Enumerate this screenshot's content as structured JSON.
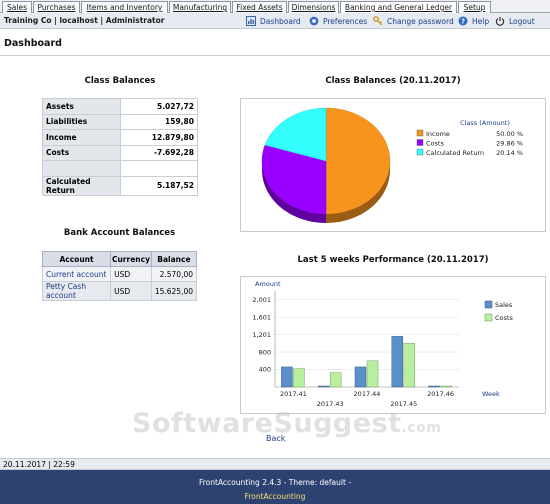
{
  "tabs": [
    {
      "label": "Sales"
    },
    {
      "label": "Purchases"
    },
    {
      "label": "Items and Inventory"
    },
    {
      "label": "Manufacturing"
    },
    {
      "label": "Fixed Assets"
    },
    {
      "label": "Dimensions"
    },
    {
      "label": "Banking and General Ledger"
    },
    {
      "label": "Setup"
    }
  ],
  "active_tab": "Banking and General Ledger",
  "header": {
    "company": "Training Co | localhost | Administrator",
    "links": {
      "dashboard": "Dashboard",
      "preferences": "Preferences",
      "change_password": "Change password",
      "help": "Help",
      "logout": "Logout"
    }
  },
  "page": {
    "title": "Dashboard"
  },
  "class_balances": {
    "title": "Class Balances",
    "rows": [
      {
        "label": "Assets",
        "value": "5.027,72"
      },
      {
        "label": "Liabilities",
        "value": "159,80"
      },
      {
        "label": "Income",
        "value": "12.879,80"
      },
      {
        "label": "Costs",
        "value": "-7.692,28"
      },
      {
        "label": "",
        "value": ""
      },
      {
        "label": "Calculated Return",
        "value": "5.187,52"
      }
    ]
  },
  "bank_balances": {
    "title": "Bank Account Balances",
    "headers": {
      "account": "Account",
      "currency": "Currency",
      "balance": "Balance"
    },
    "rows": [
      {
        "account": "Current account",
        "currency": "USD",
        "balance": "2.570,00"
      },
      {
        "account": "Petty Cash account",
        "currency": "USD",
        "balance": "15.625,00"
      }
    ]
  },
  "pie_title": "Class Balances (20.11.2017)",
  "bar_title": "Last 5 weeks Performance (20.11.2017)",
  "chart_data": [
    {
      "type": "pie",
      "title": "Class Balances (20.11.2017)",
      "legend_title": "Class (Amount)",
      "legend_position": "right",
      "slices": [
        {
          "label": "Income",
          "percent_label": "50.00 %",
          "value": 50.0,
          "color": "#f7941d"
        },
        {
          "label": "Costs",
          "percent_label": "29.86 %",
          "value": 29.86,
          "color": "#9900ff"
        },
        {
          "label": "Calculated Return",
          "percent_label": "20.14 %",
          "value": 20.14,
          "color": "#33ffff"
        }
      ]
    },
    {
      "type": "bar",
      "title": "Last 5 weeks Performance (20.11.2017)",
      "ylabel": "Amount",
      "xlabel": "Week",
      "categories": [
        "2017.41",
        "2017.43",
        "2017.44",
        "2017.45",
        "2017.46"
      ],
      "yticks": [
        "400",
        "800",
        "1,201",
        "1,601",
        "2,001"
      ],
      "ylim": [
        0,
        2200
      ],
      "grid": true,
      "legend_position": "right",
      "series": [
        {
          "name": "Sales",
          "color": "#5b8fc9",
          "values": [
            460,
            0,
            460,
            1160,
            0
          ]
        },
        {
          "name": "Costs",
          "color": "#b8f0a0",
          "values": [
            420,
            330,
            600,
            1000,
            0
          ]
        }
      ]
    }
  ],
  "watermark": {
    "main": "SoftwareSuggest",
    "suffix": ".com"
  },
  "back_label": "Back",
  "status": {
    "datetime": "20.11.2017 | 22:59"
  },
  "footer": {
    "version": "FrontAccounting 2.4.3 - Theme: default -",
    "brand": "FrontAccounting"
  }
}
